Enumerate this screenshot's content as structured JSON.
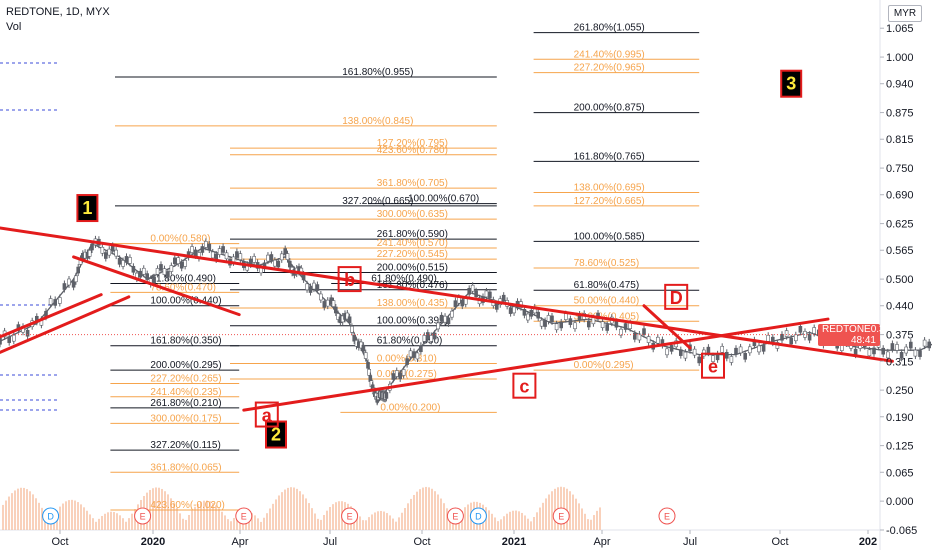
{
  "header": {
    "title": "REDTONE, 1D, MYX",
    "vol_label": "Vol"
  },
  "currency": "MYR",
  "price_tag": {
    "symbol": "REDTONE",
    "price": "0.375",
    "countdown": "48:41"
  },
  "colors": {
    "trendline": "#e31c1c",
    "fib_black": "#131722",
    "fib_orange": "#f6a44c",
    "candle": "#5d6068",
    "volume": "#f7c1a4",
    "box_fill": "#000000",
    "box_text": "#ffeb3b"
  },
  "chart_data": {
    "type": "candlestick",
    "title": "REDTONE, 1D, MYX",
    "ylim": [
      -0.065,
      1.115
    ],
    "y_ticks": [
      "1.065",
      "1.000",
      "0.940",
      "0.875",
      "0.815",
      "0.750",
      "0.690",
      "0.625",
      "0.565",
      "0.500",
      "0.440",
      "0.375",
      "0.315",
      "0.250",
      "0.190",
      "0.125",
      "0.065",
      "0.000",
      "-0.065"
    ],
    "x_ticks": [
      "Oct",
      "2020",
      "Apr",
      "Jul",
      "Oct",
      "2021",
      "Apr",
      "Jul",
      "Oct",
      "202"
    ],
    "series": [
      {
        "kind": "price",
        "points": [
          [
            0,
            0.36
          ],
          [
            0.4,
            0.4
          ],
          [
            0.8,
            0.5
          ],
          [
            1.0,
            0.58
          ],
          [
            1.3,
            0.55
          ],
          [
            1.6,
            0.5
          ],
          [
            1.9,
            0.53
          ],
          [
            2.2,
            0.57
          ],
          [
            2.5,
            0.55
          ],
          [
            2.8,
            0.53
          ],
          [
            3.1,
            0.55
          ],
          [
            3.3,
            0.5
          ],
          [
            3.6,
            0.44
          ],
          [
            3.8,
            0.4
          ],
          [
            4.0,
            0.31
          ],
          [
            4.1,
            0.22
          ],
          [
            4.2,
            0.25
          ],
          [
            4.5,
            0.33
          ],
          [
            4.8,
            0.4
          ],
          [
            5.1,
            0.47
          ],
          [
            5.4,
            0.45
          ],
          [
            5.7,
            0.43
          ],
          [
            6.0,
            0.4
          ],
          [
            6.4,
            0.41
          ],
          [
            6.8,
            0.39
          ],
          [
            7.2,
            0.35
          ],
          [
            7.6,
            0.33
          ],
          [
            8.0,
            0.33
          ],
          [
            8.4,
            0.36
          ],
          [
            8.8,
            0.38
          ],
          [
            9.2,
            0.35
          ],
          [
            9.6,
            0.34
          ],
          [
            10.0,
            0.34
          ],
          [
            10.4,
            0.38
          ],
          [
            10.7,
            0.44
          ],
          [
            11.0,
            0.4
          ],
          [
            11.2,
            0.375
          ]
        ]
      }
    ],
    "fib_levels": [
      {
        "text": "261.80%(1.055)",
        "x": [
          5.8,
          7.6
        ],
        "y": 1.055,
        "color": "black"
      },
      {
        "text": "241.40%(0.995)",
        "x": [
          5.8,
          7.6
        ],
        "y": 0.995,
        "color": "orange"
      },
      {
        "text": "161.80%(0.955)",
        "x": [
          1.25,
          5.4
        ],
        "y": 0.955,
        "color": "black"
      },
      {
        "text": "227.20%(0.965)",
        "x": [
          5.8,
          7.6
        ],
        "y": 0.965,
        "color": "orange"
      },
      {
        "text": "200.00%(0.875)",
        "x": [
          5.8,
          7.6
        ],
        "y": 0.875,
        "color": "black"
      },
      {
        "text": "138.00%(0.845)",
        "x": [
          1.25,
          5.4
        ],
        "y": 0.845,
        "color": "orange"
      },
      {
        "text": "127.20%(0.795)",
        "x": [
          2.5,
          5.4
        ],
        "y": 0.795,
        "color": "orange"
      },
      {
        "text": "423.60%(0.780)",
        "x": [
          2.5,
          5.4
        ],
        "y": 0.78,
        "color": "orange"
      },
      {
        "text": "161.80%(0.765)",
        "x": [
          5.8,
          7.6
        ],
        "y": 0.765,
        "color": "black"
      },
      {
        "text": "361.80%(0.705)",
        "x": [
          2.5,
          5.4
        ],
        "y": 0.705,
        "color": "orange"
      },
      {
        "text": "138.00%(0.695)",
        "x": [
          5.8,
          7.6
        ],
        "y": 0.695,
        "color": "orange"
      },
      {
        "text": "100.00%(0.670)",
        "x": [
          4.0,
          5.4
        ],
        "y": 0.67,
        "color": "black"
      },
      {
        "text": "327.20%(0.665)",
        "x": [
          1.25,
          5.4
        ],
        "y": 0.665,
        "color": "black"
      },
      {
        "text": "127.20%(0.665)",
        "x": [
          5.8,
          7.6
        ],
        "y": 0.665,
        "color": "orange"
      },
      {
        "text": "300.00%(0.635)",
        "x": [
          2.5,
          5.4
        ],
        "y": 0.635,
        "color": "orange"
      },
      {
        "text": "261.80%(0.590)",
        "x": [
          2.5,
          5.4
        ],
        "y": 0.59,
        "color": "black"
      },
      {
        "text": "100.00%(0.585)",
        "x": [
          5.8,
          7.6
        ],
        "y": 0.585,
        "color": "black"
      },
      {
        "text": "0.00%(0.580)",
        "x": [
          1.2,
          2.6
        ],
        "y": 0.58,
        "color": "orange"
      },
      {
        "text": "241.40%(0.570)",
        "x": [
          2.5,
          5.4
        ],
        "y": 0.57,
        "color": "orange"
      },
      {
        "text": "227.20%(0.545)",
        "x": [
          2.5,
          5.4
        ],
        "y": 0.545,
        "color": "orange"
      },
      {
        "text": "78.60%(0.525)",
        "x": [
          5.8,
          7.6
        ],
        "y": 0.525,
        "color": "orange"
      },
      {
        "text": "200.00%(0.515)",
        "x": [
          2.5,
          5.4
        ],
        "y": 0.515,
        "color": "black"
      },
      {
        "text": "61.80%(0.490)",
        "x": [
          1.2,
          2.6
        ],
        "y": 0.49,
        "color": "black"
      },
      {
        "text": "61.80%(0.490)",
        "x": [
          3.6,
          5.4
        ],
        "y": 0.49,
        "color": "black"
      },
      {
        "text": "161.80%(0.476)",
        "x": [
          2.5,
          5.4
        ],
        "y": 0.476,
        "color": "black"
      },
      {
        "text": "61.80%(0.475)",
        "x": [
          5.8,
          7.6
        ],
        "y": 0.475,
        "color": "black"
      },
      {
        "text": "78.60%(0.470)",
        "x": [
          1.2,
          2.6
        ],
        "y": 0.47,
        "color": "orange"
      },
      {
        "text": "100.00%(0.440)",
        "x": [
          1.2,
          2.6
        ],
        "y": 0.44,
        "color": "black"
      },
      {
        "text": "50.00%(0.440)",
        "x": [
          5.8,
          7.6
        ],
        "y": 0.44,
        "color": "orange"
      },
      {
        "text": "138.00%(0.435)",
        "x": [
          2.5,
          5.4
        ],
        "y": 0.435,
        "color": "orange"
      },
      {
        "text": "38.20%(0.405)",
        "x": [
          5.8,
          7.6
        ],
        "y": 0.405,
        "color": "orange"
      },
      {
        "text": "100.00%(0.395)",
        "x": [
          2.5,
          5.4
        ],
        "y": 0.395,
        "color": "black"
      },
      {
        "text": "161.80%(0.350)",
        "x": [
          1.2,
          2.6
        ],
        "y": 0.35,
        "color": "black"
      },
      {
        "text": "61.80%(0.350)",
        "x": [
          2.5,
          5.4
        ],
        "y": 0.35,
        "color": "black"
      },
      {
        "text": "0.00%(0.310)",
        "x": [
          2.5,
          5.4
        ],
        "y": 0.31,
        "color": "orange"
      },
      {
        "text": "200.00%(0.295)",
        "x": [
          1.2,
          2.6
        ],
        "y": 0.295,
        "color": "black"
      },
      {
        "text": "0.00%(0.295)",
        "x": [
          5.8,
          7.6
        ],
        "y": 0.295,
        "color": "orange"
      },
      {
        "text": "0.00%(0.275)",
        "x": [
          2.5,
          5.4
        ],
        "y": 0.275,
        "color": "orange"
      },
      {
        "text": "227.20%(0.265)",
        "x": [
          1.2,
          2.6
        ],
        "y": 0.265,
        "color": "orange"
      },
      {
        "text": "241.40%(0.235)",
        "x": [
          1.2,
          2.6
        ],
        "y": 0.235,
        "color": "orange"
      },
      {
        "text": "261.80%(0.210)",
        "x": [
          1.2,
          2.6
        ],
        "y": 0.21,
        "color": "black"
      },
      {
        "text": "0.00%(0.200)",
        "x": [
          3.7,
          5.4
        ],
        "y": 0.2,
        "color": "orange"
      },
      {
        "text": "300.00%(0.175)",
        "x": [
          1.2,
          2.6
        ],
        "y": 0.175,
        "color": "orange"
      },
      {
        "text": "327.20%(0.115)",
        "x": [
          1.2,
          2.6
        ],
        "y": 0.115,
        "color": "black"
      },
      {
        "text": "361.80%(0.065)",
        "x": [
          1.2,
          2.6
        ],
        "y": 0.065,
        "color": "orange"
      },
      {
        "text": "423.60%(-0.020)",
        "x": [
          1.2,
          2.6
        ],
        "y": -0.02,
        "color": "orange"
      }
    ],
    "trendlines": [
      {
        "x": [
          0,
          9.7
        ],
        "y": [
          0.615,
          0.315
        ]
      },
      {
        "x": [
          2.65,
          9.0
        ],
        "y": [
          0.205,
          0.41
        ]
      },
      {
        "x": [
          0,
          1.1
        ],
        "y": [
          0.37,
          0.465
        ]
      },
      {
        "x": [
          0,
          1.4
        ],
        "y": [
          0.335,
          0.46
        ]
      },
      {
        "x": [
          0.8,
          2.6
        ],
        "y": [
          0.55,
          0.42
        ]
      },
      {
        "x": [
          7.0,
          7.5
        ],
        "y": [
          0.44,
          0.345
        ]
      }
    ],
    "wave_labels": [
      {
        "text": "1",
        "x": 0.95,
        "y": 0.66,
        "style": "box"
      },
      {
        "text": "2",
        "x": 3.0,
        "y": 0.15,
        "style": "box"
      },
      {
        "text": "3",
        "x": 8.6,
        "y": 0.94,
        "style": "box"
      },
      {
        "text": "a",
        "x": 2.9,
        "y": 0.195,
        "style": "outline"
      },
      {
        "text": "b",
        "x": 3.8,
        "y": 0.5,
        "style": "outline"
      },
      {
        "text": "c",
        "x": 5.7,
        "y": 0.26,
        "style": "outline"
      },
      {
        "text": "D",
        "x": 7.35,
        "y": 0.46,
        "style": "outline"
      },
      {
        "text": "e",
        "x": 7.75,
        "y": 0.305,
        "style": "outline"
      }
    ],
    "event_markers": [
      {
        "text": "D",
        "x": 0.55,
        "kind": "dividend"
      },
      {
        "text": "E",
        "x": 1.55,
        "kind": "earnings"
      },
      {
        "text": "E",
        "x": 2.65,
        "kind": "earnings"
      },
      {
        "text": "E",
        "x": 3.8,
        "kind": "earnings"
      },
      {
        "text": "E",
        "x": 4.95,
        "kind": "earnings"
      },
      {
        "text": "D",
        "x": 5.2,
        "kind": "dividend"
      },
      {
        "text": "E",
        "x": 6.1,
        "kind": "earnings"
      },
      {
        "text": "E",
        "x": 7.25,
        "kind": "earnings"
      }
    ]
  }
}
